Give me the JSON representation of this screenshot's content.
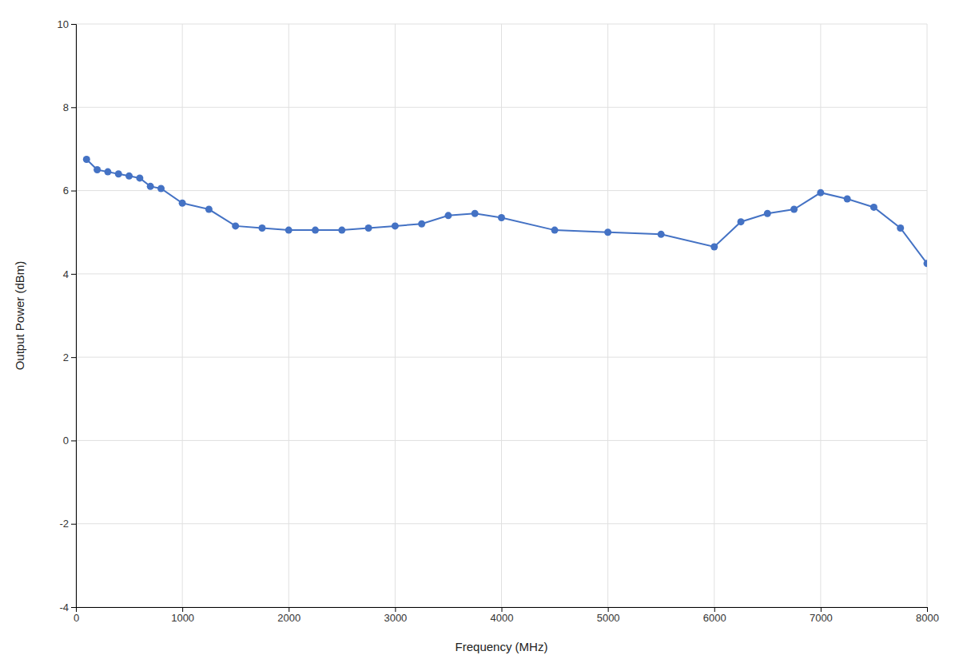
{
  "chart_data": {
    "type": "line",
    "xlabel": "Frequency (MHz)",
    "ylabel": "Output Power (dBm)",
    "x": [
      100,
      200,
      300,
      400,
      500,
      600,
      700,
      800,
      1000,
      1250,
      1500,
      1750,
      2000,
      2250,
      2500,
      2750,
      3000,
      3250,
      3500,
      3750,
      4000,
      4500,
      5000,
      5500,
      6000,
      6250,
      6500,
      6750,
      7000,
      7250,
      7500,
      7750,
      8000
    ],
    "values": [
      6.75,
      6.5,
      6.45,
      6.4,
      6.35,
      6.3,
      6.1,
      6.05,
      5.7,
      5.55,
      5.15,
      5.1,
      5.05,
      5.05,
      5.05,
      5.1,
      5.15,
      5.2,
      5.4,
      5.45,
      5.35,
      5.05,
      5.0,
      4.95,
      4.65,
      5.25,
      5.45,
      5.55,
      5.95,
      5.8,
      5.6,
      5.1,
      4.25
    ],
    "color": "#4472C4",
    "marker": "circle",
    "xlim": [
      0,
      8000
    ],
    "ylim": [
      -4,
      10
    ],
    "xticks": [
      0,
      1000,
      2000,
      3000,
      4000,
      5000,
      6000,
      7000,
      8000
    ],
    "yticks": [
      -4,
      -2,
      0,
      2,
      4,
      6,
      8,
      10
    ],
    "grid": true
  }
}
